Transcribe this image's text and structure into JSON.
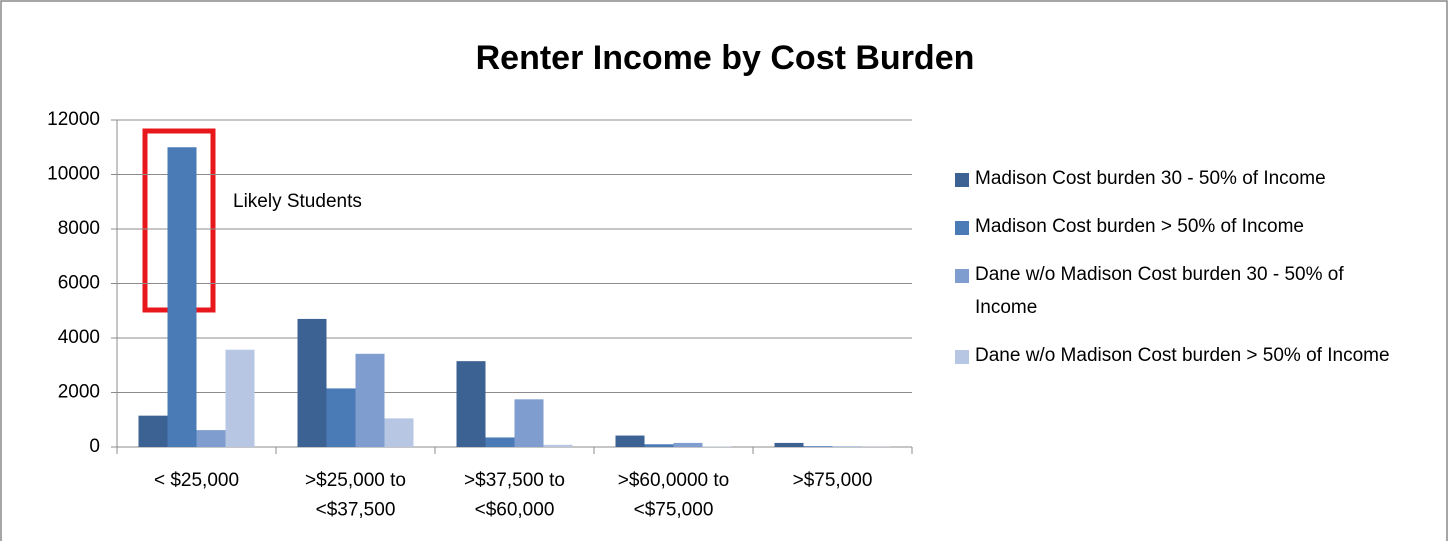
{
  "chart_data": {
    "type": "bar",
    "title": "Renter Income by Cost Burden",
    "categories": [
      "< $25,000",
      ">$25,000 to\n<$37,500",
      ">$37,500 to\n<$60,000",
      ">$60,0000 to\n<$75,000",
      ">$75,000"
    ],
    "series": [
      {
        "name": "Madison Cost burden 30 - 50% of Income",
        "color": "#3c6193",
        "values": [
          1150,
          4700,
          3150,
          420,
          150
        ]
      },
      {
        "name": "Madison Cost burden > 50% of Income",
        "color": "#4a7bb7",
        "values": [
          11000,
          2150,
          350,
          100,
          30
        ]
      },
      {
        "name": "Dane w/o Madison Cost burden 30 - 50% of Income",
        "color": "#7f9ecf",
        "values": [
          620,
          3420,
          1750,
          150,
          20
        ]
      },
      {
        "name": "Dane w/o Madison Cost burden > 50% of Income",
        "color": "#b7c6e3",
        "values": [
          3570,
          1050,
          80,
          20,
          10
        ]
      }
    ],
    "annotation": "Likely Students",
    "ylim": [
      0,
      12000
    ],
    "yticks": [
      0,
      2000,
      4000,
      6000,
      8000,
      10000,
      12000
    ],
    "grid": true,
    "legend": "right"
  }
}
